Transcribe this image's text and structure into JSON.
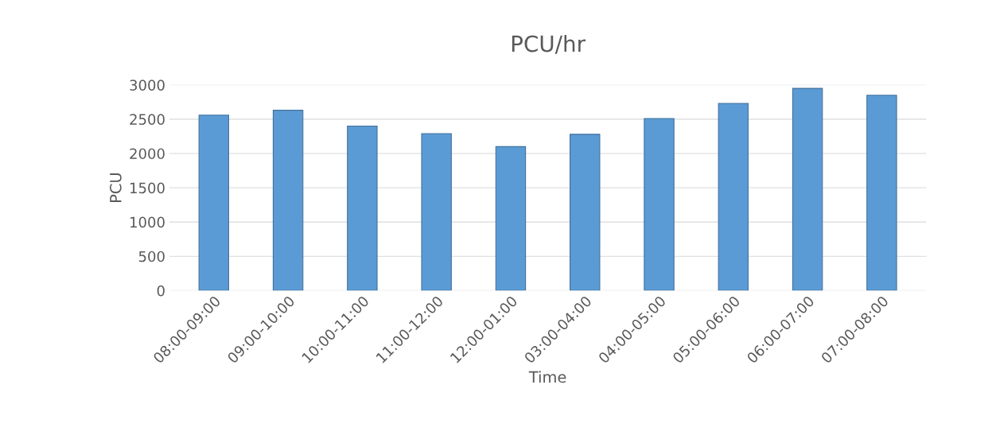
{
  "chart_data": {
    "type": "bar",
    "title": "PCU/hr",
    "xlabel": "Time",
    "ylabel": "PCU",
    "categories": [
      "08:00-09:00",
      "09:00-10:00",
      "10:00-11:00",
      "11:00-12:00",
      "12:00-01:00",
      "03:00-04:00",
      "04:00-05:00",
      "05:00-06:00",
      "06:00-07:00",
      "07:00-08:00"
    ],
    "values": [
      2560,
      2630,
      2400,
      2290,
      2100,
      2280,
      2510,
      2730,
      2950,
      2850
    ],
    "color": "#5b9bd5",
    "ylim": [
      0,
      3000
    ],
    "yticks": [
      0,
      500,
      1000,
      1500,
      2000,
      2500,
      3000
    ],
    "grid": "y"
  }
}
